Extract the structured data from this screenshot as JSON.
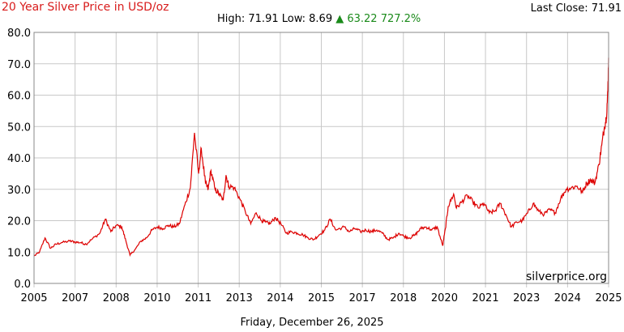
{
  "header": {
    "title": "20 Year Silver Price in USD/oz",
    "last_close_label": "Last Close: 71.91",
    "stats_high_low": "High: 71.91 Low: 8.69",
    "stats_change": "▲ 63.22 727.2%"
  },
  "footer": {
    "date": "Friday, December 26, 2025",
    "watermark": "silverprice.org"
  },
  "colors": {
    "line": "#dd0000",
    "title": "#d81b1b",
    "change": "#1a8a1a",
    "grid": "#c8c8c8"
  },
  "chart_data": {
    "type": "line",
    "title": "20 Year Silver Price in USD/oz",
    "xlabel": "",
    "ylabel": "",
    "ylim": [
      0,
      80
    ],
    "xlim": [
      2005.0,
      2025.95
    ],
    "grid": true,
    "y_ticks": [
      "0.0",
      "10.0",
      "20.0",
      "30.0",
      "40.0",
      "50.0",
      "60.0",
      "70.0",
      "80.0"
    ],
    "x_ticks": [
      "2005",
      "2007",
      "2008",
      "2010",
      "2011",
      "2013",
      "2014",
      "2015",
      "2017",
      "2018",
      "2020",
      "2021",
      "2023",
      "2024",
      "2025"
    ],
    "series": [
      {
        "name": "",
        "x": [
          2005.0,
          2005.2,
          2005.4,
          2005.6,
          2005.8,
          2006.0,
          2006.3,
          2006.5,
          2006.7,
          2006.9,
          2007.1,
          2007.4,
          2007.6,
          2007.8,
          2008.0,
          2008.2,
          2008.35,
          2008.5,
          2008.7,
          2008.9,
          2009.1,
          2009.3,
          2009.5,
          2009.7,
          2009.9,
          2010.1,
          2010.3,
          2010.5,
          2010.7,
          2010.85,
          2011.0,
          2011.1,
          2011.25,
          2011.35,
          2011.45,
          2011.6,
          2011.75,
          2011.9,
          2012.0,
          2012.1,
          2012.3,
          2012.5,
          2012.7,
          2012.9,
          2013.1,
          2013.3,
          2013.45,
          2013.6,
          2013.8,
          2014.0,
          2014.2,
          2014.4,
          2014.6,
          2014.8,
          2015.0,
          2015.2,
          2015.4,
          2015.6,
          2015.8,
          2016.0,
          2016.3,
          2016.5,
          2016.7,
          2016.9,
          2017.1,
          2017.3,
          2017.5,
          2017.7,
          2017.9,
          2018.1,
          2018.3,
          2018.5,
          2018.7,
          2018.9,
          2019.1,
          2019.3,
          2019.5,
          2019.7,
          2019.9,
          2020.0,
          2020.1,
          2020.3,
          2020.4,
          2020.6,
          2020.8,
          2021.0,
          2021.2,
          2021.4,
          2021.6,
          2021.8,
          2022.0,
          2022.2,
          2022.4,
          2022.6,
          2022.8,
          2023.0,
          2023.2,
          2023.4,
          2023.6,
          2023.8,
          2024.0,
          2024.2,
          2024.4,
          2024.6,
          2024.8,
          2025.0,
          2025.15,
          2025.3,
          2025.45,
          2025.6,
          2025.7,
          2025.8,
          2025.87,
          2025.92,
          2025.95
        ],
        "values": [
          8.7,
          10.0,
          14.5,
          11.2,
          12.5,
          13.0,
          13.5,
          13.2,
          13.0,
          12.5,
          14.0,
          16.0,
          20.5,
          16.5,
          18.5,
          18.0,
          13.5,
          9.0,
          11.0,
          13.5,
          14.5,
          17.0,
          18.0,
          17.5,
          18.5,
          18.0,
          19.0,
          25.0,
          30.5,
          48.0,
          35.0,
          43.0,
          32.0,
          30.0,
          36.0,
          30.0,
          28.5,
          26.5,
          34.5,
          31.0,
          30.5,
          27.0,
          23.0,
          19.0,
          22.5,
          20.0,
          19.5,
          19.0,
          21.0,
          19.0,
          16.0,
          16.5,
          16.0,
          15.5,
          14.5,
          14.0,
          15.5,
          17.0,
          20.5,
          17.0,
          18.0,
          16.5,
          17.5,
          16.5,
          17.0,
          16.5,
          17.0,
          16.0,
          14.0,
          14.5,
          16.0,
          15.0,
          14.5,
          15.5,
          17.5,
          18.0,
          17.0,
          18.0,
          12.0,
          17.5,
          24.5,
          28.5,
          24.0,
          26.0,
          28.0,
          26.0,
          24.0,
          25.5,
          22.5,
          23.0,
          25.5,
          22.0,
          18.0,
          19.5,
          20.0,
          22.5,
          25.5,
          23.0,
          22.0,
          23.5,
          22.5,
          27.0,
          30.0,
          30.5,
          31.0,
          29.0,
          32.0,
          33.0,
          32.0,
          38.0,
          44.0,
          50.0,
          53.0,
          61.0,
          71.9
        ]
      }
    ]
  }
}
